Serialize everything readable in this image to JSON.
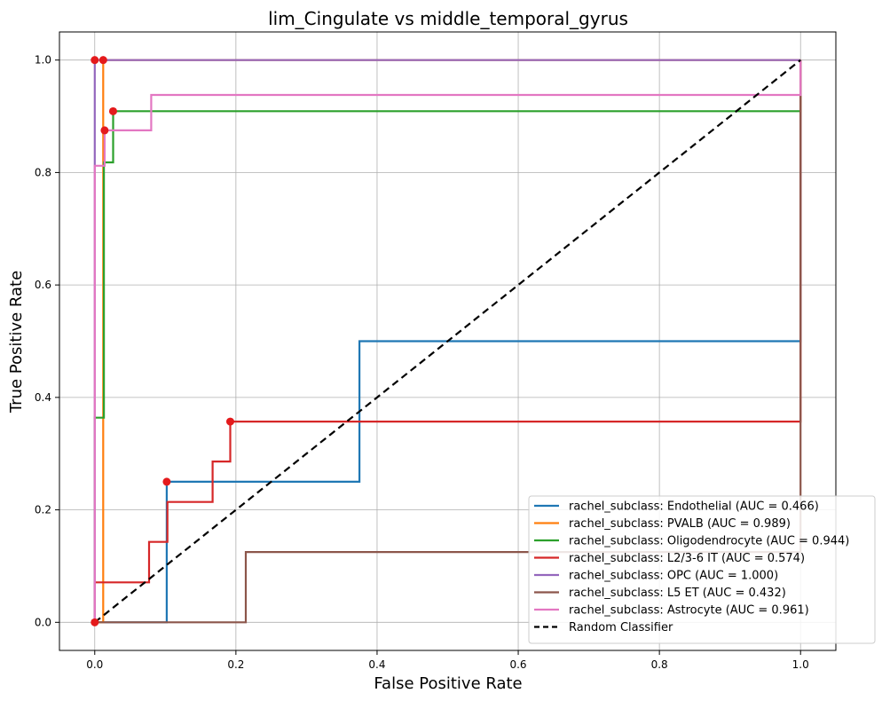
{
  "chart_data": {
    "type": "line",
    "title": "lim_Cingulate vs middle_temporal_gyrus",
    "xlabel": "False Positive Rate",
    "ylabel": "True Positive Rate",
    "xlim": [
      -0.05,
      1.05
    ],
    "ylim": [
      -0.05,
      1.05
    ],
    "xticks": [
      "0.0",
      "0.2",
      "0.4",
      "0.6",
      "0.8",
      "1.0"
    ],
    "yticks": [
      "0.0",
      "0.2",
      "0.4",
      "0.6",
      "0.8",
      "1.0"
    ],
    "grid": true,
    "legend_position": "lower-right",
    "series": [
      {
        "name": "rachel_subclass: Endothelial (AUC = 0.466)",
        "color": "#1f77b4",
        "points": [
          [
            0,
            0
          ],
          [
            0.102,
            0
          ],
          [
            0.102,
            0.25
          ],
          [
            0.375,
            0.25
          ],
          [
            0.375,
            0.5
          ],
          [
            1.0,
            0.5
          ],
          [
            1.0,
            1.0
          ]
        ],
        "marker": [
          0.102,
          0.25
        ]
      },
      {
        "name": "rachel_subclass: PVALB (AUC = 0.989)",
        "color": "#ff7f0e",
        "points": [
          [
            0,
            0
          ],
          [
            0.012,
            0
          ],
          [
            0.012,
            1.0
          ],
          [
            1.0,
            1.0
          ]
        ],
        "marker": [
          0.012,
          1.0
        ]
      },
      {
        "name": "rachel_subclass: Oligodendrocyte (AUC = 0.944)",
        "color": "#2ca02c",
        "points": [
          [
            0,
            0
          ],
          [
            0,
            0.364
          ],
          [
            0.013,
            0.364
          ],
          [
            0.013,
            0.818
          ],
          [
            0.026,
            0.818
          ],
          [
            0.026,
            0.909
          ],
          [
            1.0,
            0.909
          ],
          [
            1.0,
            1.0
          ]
        ],
        "marker": [
          0.026,
          0.909
        ]
      },
      {
        "name": "rachel_subclass: L2/3-6 IT (AUC = 0.574)",
        "color": "#d62728",
        "points": [
          [
            0,
            0
          ],
          [
            0,
            0.071
          ],
          [
            0.077,
            0.071
          ],
          [
            0.077,
            0.143
          ],
          [
            0.103,
            0.143
          ],
          [
            0.103,
            0.214
          ],
          [
            0.167,
            0.214
          ],
          [
            0.167,
            0.286
          ],
          [
            0.192,
            0.286
          ],
          [
            0.192,
            0.357
          ],
          [
            1.0,
            0.357
          ],
          [
            1.0,
            1.0
          ]
        ],
        "marker": [
          0.192,
          0.357
        ]
      },
      {
        "name": "rachel_subclass: OPC (AUC = 1.000)",
        "color": "#9467bd",
        "points": [
          [
            0,
            0
          ],
          [
            0,
            1.0
          ],
          [
            1.0,
            1.0
          ]
        ],
        "marker": [
          0,
          1.0
        ]
      },
      {
        "name": "rachel_subclass: L5 ET (AUC = 0.432)",
        "color": "#8c564b",
        "points": [
          [
            0,
            0
          ],
          [
            0.214,
            0
          ],
          [
            0.214,
            0.125
          ],
          [
            1.0,
            0.125
          ],
          [
            1.0,
            1.0
          ]
        ],
        "marker": [
          0,
          0
        ]
      },
      {
        "name": "rachel_subclass: Astrocyte (AUC = 0.961)",
        "color": "#e377c2",
        "points": [
          [
            0,
            0
          ],
          [
            0,
            0.812
          ],
          [
            0.014,
            0.812
          ],
          [
            0.014,
            0.875
          ],
          [
            0.08,
            0.875
          ],
          [
            0.08,
            0.938
          ],
          [
            1.0,
            0.938
          ],
          [
            1.0,
            1.0
          ]
        ],
        "marker": [
          0.014,
          0.875
        ]
      }
    ],
    "reference_line": {
      "name": "Random Classifier",
      "color": "#000000",
      "points": [
        [
          0,
          0
        ],
        [
          1,
          1
        ]
      ],
      "style": "dashed"
    },
    "marker_color": "#e41a1c"
  }
}
